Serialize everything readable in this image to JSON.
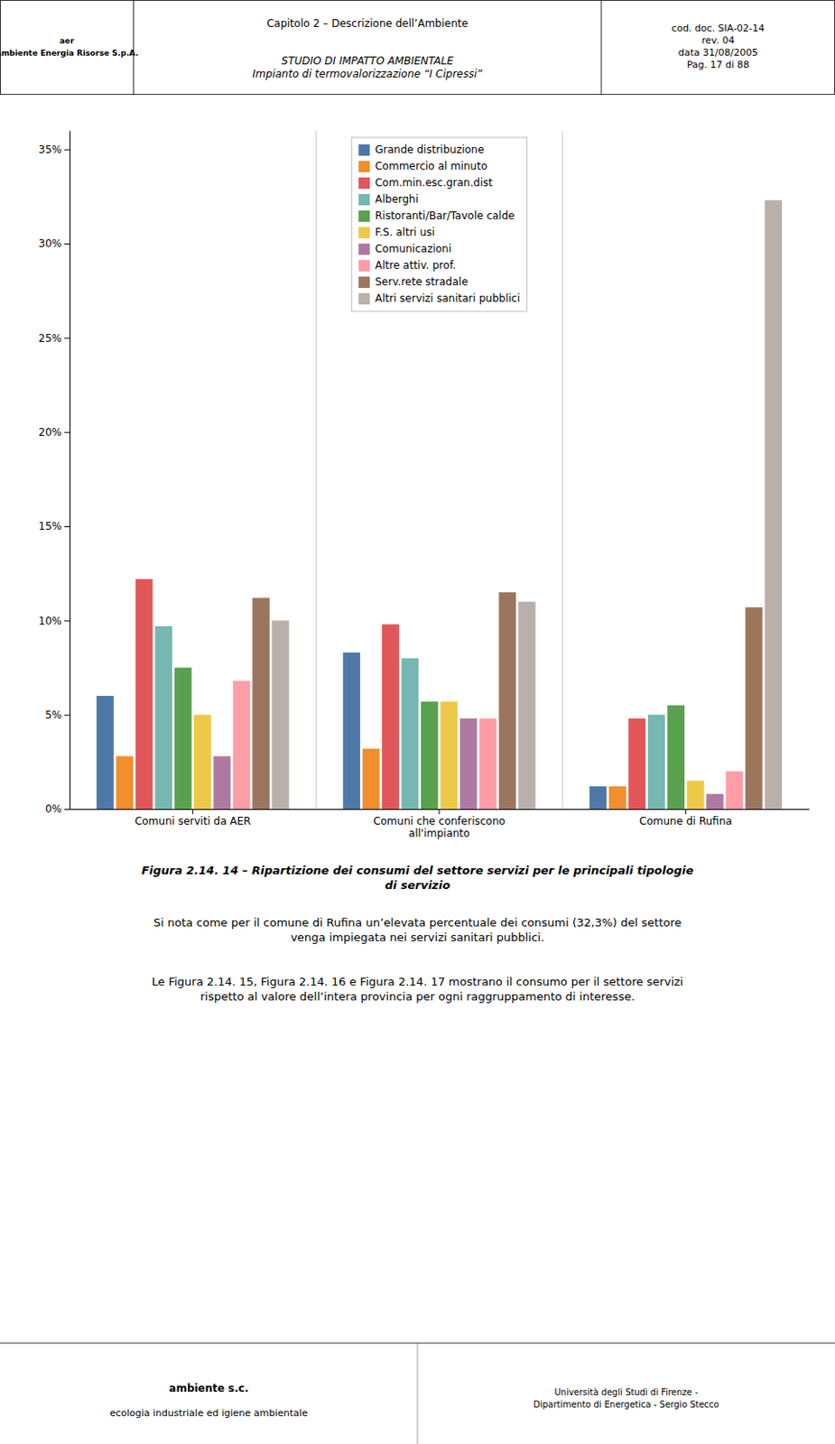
{
  "header_left": "Capitolo 2 – Descrizione dell’Ambiente",
  "header_center": "STUDIO DI IMPATTO AMBIENTALE\nImpianto di termovalorizzazione “I Cipressi”",
  "header_right": "cod. doc. SIA-02-14\nrev. 04\ndata 31/08/2005\nPag. 17 di 88",
  "logo_text": "aer\nAmbiente Energia Risorse S.p.A.",
  "caption": "Figura 2.14. 14 – Ripartizione dei consumi del settore servizi per le principali tipologie\ndi servizio",
  "body_text": "Si nota come per il comune di Rufina un’elevata percentuale dei consumi (32,3%) del settore\nvenga impiegata nei servizi sanitari pubblici.\n\n\nLe Figura 2.14. 15, Figura 2.14. 16 e Figura 2.14. 17 mostrano il consumo per il settore servizi\nrispetto al valore dell’intera provincia per ogni raggruppamento di interesse.",
  "footer_left_title": "ambiente s.c.",
  "footer_left_subtitle": "ecologia industriale ed igiene ambientale",
  "footer_right": "Università degli Studi di Firenze -\nDipartimento di Energetica - Sergio Stecco",
  "chart_data": {
    "type": "bar",
    "categories": [
      "Comuni serviti da AER",
      "Comuni che conferiscono\nall'impianto",
      "Comune di Rufina"
    ],
    "series": [
      {
        "name": "Grande distribuzione",
        "values": [
          0.06,
          0.083,
          0.012
        ]
      },
      {
        "name": "Commercio al minuto",
        "values": [
          0.028,
          0.032,
          0.012
        ]
      },
      {
        "name": "Com.min.esc.gran.dist",
        "values": [
          0.122,
          0.098,
          0.048
        ]
      },
      {
        "name": "Alberghi",
        "values": [
          0.097,
          0.08,
          0.05
        ]
      },
      {
        "name": "Ristoranti/Bar/Tavole calde",
        "values": [
          0.075,
          0.057,
          0.055
        ]
      },
      {
        "name": "F.S. altri usi",
        "values": [
          0.05,
          0.057,
          0.015
        ]
      },
      {
        "name": "Comunicazioni",
        "values": [
          0.028,
          0.048,
          0.008
        ]
      },
      {
        "name": "Altre attiv. prof.",
        "values": [
          0.068,
          0.048,
          0.02
        ]
      },
      {
        "name": "Serv.rete stradale",
        "values": [
          0.112,
          0.115,
          0.107
        ]
      },
      {
        "name": "Altri servizi sanitari pubblici",
        "values": [
          0.1,
          0.11,
          0.323
        ]
      }
    ],
    "ylim": [
      0,
      0.36
    ],
    "yticks": [
      {
        "value": 0.0,
        "label": "0%"
      },
      {
        "value": 0.05,
        "label": "5%"
      },
      {
        "value": 0.1,
        "label": "10%"
      },
      {
        "value": 0.15,
        "label": "15%"
      },
      {
        "value": 0.2,
        "label": "20%"
      },
      {
        "value": 0.25,
        "label": "25%"
      },
      {
        "value": 0.3,
        "label": "30%"
      },
      {
        "value": 0.35,
        "label": "35%"
      }
    ],
    "grid": false,
    "legend": "top"
  }
}
